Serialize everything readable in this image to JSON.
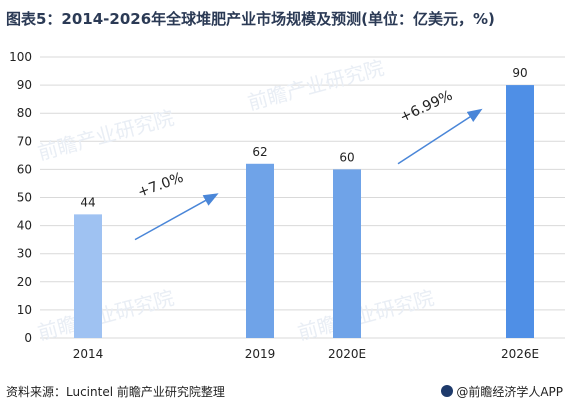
{
  "title": "图表5：2014-2026年全球堆肥产业市场规模及预测(单位：亿美元，%)",
  "source": "资料来源：Lucintel 前瞻产业研究院整理",
  "brand": "@前瞻经济学人APP",
  "watermark_text": "前瞻产业研究院",
  "colors": {
    "bar": "#6fa3e8",
    "bar_light": "#9fc2f2",
    "bar_dark": "#4f8fe6",
    "arrow": "#4a86d8",
    "grid": "#d9d9d9",
    "title": "#2b3a55"
  },
  "chart_data": {
    "type": "bar",
    "categories": [
      "2014",
      "2019",
      "2020E",
      "2026E"
    ],
    "values": [
      44,
      62,
      60,
      90
    ],
    "title": "图表5：2014-2026年全球堆肥产业市场规模及预测(单位：亿美元，%)",
    "xlabel": "",
    "ylabel": "",
    "ylim": [
      0,
      100
    ],
    "yticks": [
      0,
      10,
      20,
      30,
      40,
      50,
      60,
      70,
      80,
      90,
      100
    ],
    "grid": true,
    "annotations": [
      {
        "text": "+7.0%",
        "between": [
          "2014",
          "2019"
        ]
      },
      {
        "text": "+6.99%",
        "between": [
          "2020E",
          "2026E"
        ]
      }
    ]
  }
}
